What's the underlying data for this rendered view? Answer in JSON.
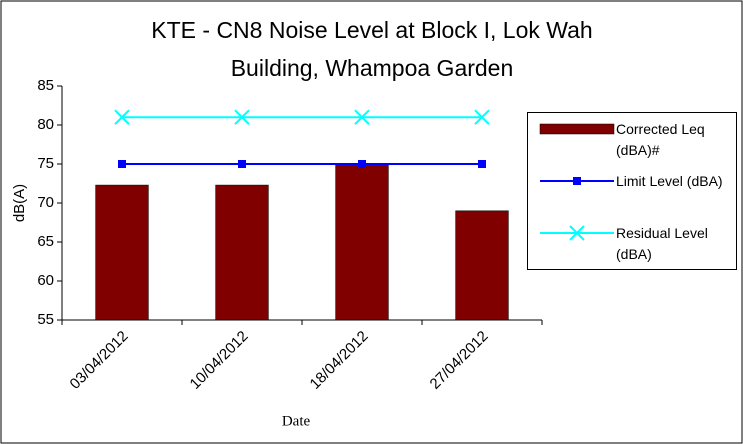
{
  "chart_data": {
    "type": "bar-line",
    "title": [
      "KTE - CN8 Noise Level at Block I, Lok Wah",
      "Building, Whampoa Garden"
    ],
    "y_label": "dB(A)",
    "x_label": "Date",
    "categories": [
      "03/04/2012",
      "10/04/2012",
      "18/04/2012",
      "27/04/2012"
    ],
    "series": [
      {
        "name": "Corrected Leq (dBA)#",
        "type": "bar",
        "color": "#800000",
        "values": [
          72.3,
          72.3,
          75,
          69
        ]
      },
      {
        "name": "Limit Level (dBA)",
        "type": "line",
        "marker": "square",
        "color": "#0000ff",
        "values": [
          75,
          75,
          75,
          75
        ]
      },
      {
        "name": "Residual Level (dBA)",
        "type": "line",
        "marker": "x",
        "color": "#00ffff",
        "values": [
          81,
          81,
          81,
          81
        ]
      }
    ],
    "ylim": [
      55,
      85
    ],
    "yticks": [
      55,
      60,
      65,
      70,
      75,
      80,
      85
    ],
    "grid": false,
    "legend": "right"
  }
}
